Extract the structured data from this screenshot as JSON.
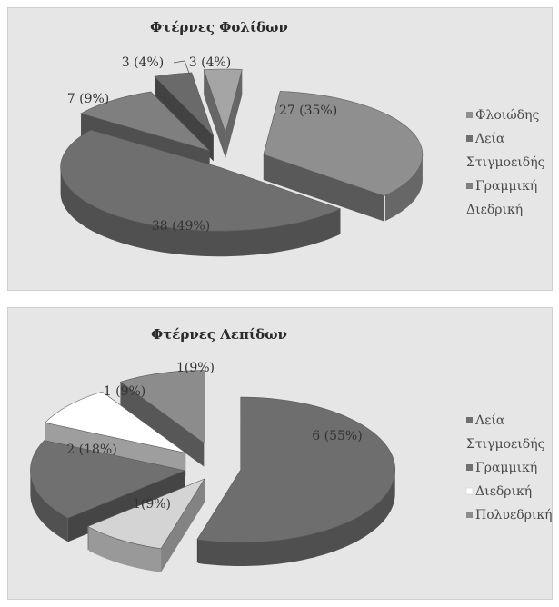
{
  "chart_data": [
    {
      "type": "pie",
      "title": "Φτέρνες Φολίδων",
      "slices": [
        {
          "name": "Φλοιώδης",
          "value": 27,
          "label": "27 (35%)",
          "color": "#8f8f8f"
        },
        {
          "name": "Λεία Στιγμοειδής",
          "value": 38,
          "label": "38 (49%)",
          "color": "#6f6f6f"
        },
        {
          "name": "Γραμμική Διεδρική",
          "value": 7,
          "label": "7 (9%)",
          "color": "#7f7f7f"
        },
        {
          "name": "",
          "value": 3,
          "label": "3 (4%)",
          "color": "#6a6a6a"
        },
        {
          "name": "",
          "value": 3,
          "label": "3 (4%)",
          "color": "#a5a5a5"
        }
      ],
      "legend": [
        "Φλοιώδης",
        "Λεία",
        "Στιγμοειδής",
        "Γραμμική",
        "Διεδρική"
      ],
      "legend_position": "right"
    },
    {
      "type": "pie",
      "title": "Φτέρνες Λεπίδων",
      "slices": [
        {
          "name": "Λεία Στιγμοειδής",
          "value": 6,
          "label": "6 (55%)",
          "color": "#6e6e6e"
        },
        {
          "name": "Διεδρική",
          "value": 1,
          "label": "1(9%)",
          "color": "#d4d4d4"
        },
        {
          "name": "Γραμμική",
          "value": 2,
          "label": "2 (18%)",
          "color": "#707070"
        },
        {
          "name": "",
          "value": 1,
          "label": "1 (9%)",
          "color": "#ffffff"
        },
        {
          "name": "Πολυεδρική",
          "value": 1,
          "label": "1(9%)",
          "color": "#8c8c8c"
        }
      ],
      "legend": [
        "Λεία",
        "Στιγμοειδής",
        "Γραμμική",
        "Διεδρική",
        "Πολυεδρική"
      ],
      "legend_position": "right"
    }
  ]
}
